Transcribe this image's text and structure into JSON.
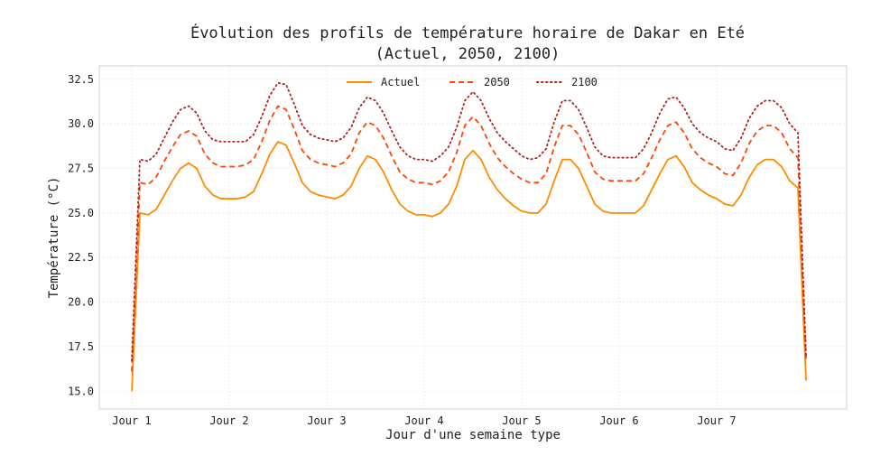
{
  "chart_data": {
    "type": "line",
    "title_lines": [
      "Évolution des profils de température horaire de Dakar en Eté",
      "(Actuel, 2050, 2100)"
    ],
    "xlabel": "Jour d'une semaine type",
    "ylabel": "Température (°C)",
    "xticks": [
      {
        "label": "Jour 1",
        "x": 0
      },
      {
        "label": "Jour 2",
        "x": 24
      },
      {
        "label": "Jour 3",
        "x": 48
      },
      {
        "label": "Jour 4",
        "x": 72
      },
      {
        "label": "Jour 5",
        "x": 96
      },
      {
        "label": "Jour 6",
        "x": 120
      },
      {
        "label": "Jour 7",
        "x": 144
      }
    ],
    "yticks": [
      15.0,
      17.5,
      20.0,
      22.5,
      25.0,
      27.5,
      30.0,
      32.5
    ],
    "ytick_labels": [
      "15.0",
      "17.5",
      "20.0",
      "22.5",
      "25.0",
      "27.5",
      "30.0",
      "32.5"
    ],
    "xlim": [
      -8,
      176
    ],
    "ylim": [
      14.0,
      33.25
    ],
    "grid": true,
    "legend_position": "top-center",
    "series": [
      {
        "name": "Actuel",
        "color": "#ff8c00",
        "style": "solid",
        "points": [
          [
            0,
            15.0
          ],
          [
            2,
            25.0
          ],
          [
            4,
            24.9
          ],
          [
            6,
            25.2
          ],
          [
            8,
            26.0
          ],
          [
            10,
            26.8
          ],
          [
            12,
            27.5
          ],
          [
            14,
            27.8
          ],
          [
            16,
            27.5
          ],
          [
            18,
            26.5
          ],
          [
            20,
            26.0
          ],
          [
            22,
            25.8
          ],
          [
            24,
            25.8
          ],
          [
            26,
            25.8
          ],
          [
            28,
            25.9
          ],
          [
            30,
            26.2
          ],
          [
            32,
            27.2
          ],
          [
            34,
            28.3
          ],
          [
            36,
            29.0
          ],
          [
            38,
            28.8
          ],
          [
            40,
            27.8
          ],
          [
            42,
            26.7
          ],
          [
            44,
            26.2
          ],
          [
            46,
            26.0
          ],
          [
            48,
            25.9
          ],
          [
            50,
            25.8
          ],
          [
            52,
            26.0
          ],
          [
            54,
            26.5
          ],
          [
            56,
            27.5
          ],
          [
            58,
            28.2
          ],
          [
            60,
            28.0
          ],
          [
            62,
            27.3
          ],
          [
            64,
            26.3
          ],
          [
            66,
            25.5
          ],
          [
            68,
            25.1
          ],
          [
            70,
            24.9
          ],
          [
            72,
            24.9
          ],
          [
            74,
            24.8
          ],
          [
            76,
            25.0
          ],
          [
            78,
            25.5
          ],
          [
            80,
            26.5
          ],
          [
            82,
            28.0
          ],
          [
            84,
            28.5
          ],
          [
            86,
            28.0
          ],
          [
            88,
            27.0
          ],
          [
            90,
            26.3
          ],
          [
            92,
            25.8
          ],
          [
            94,
            25.4
          ],
          [
            96,
            25.1
          ],
          [
            98,
            25.0
          ],
          [
            100,
            25.0
          ],
          [
            102,
            25.5
          ],
          [
            104,
            26.8
          ],
          [
            106,
            28.0
          ],
          [
            108,
            28.0
          ],
          [
            110,
            27.5
          ],
          [
            112,
            26.5
          ],
          [
            114,
            25.5
          ],
          [
            116,
            25.1
          ],
          [
            118,
            25.0
          ],
          [
            120,
            25.0
          ],
          [
            122,
            25.0
          ],
          [
            124,
            25.0
          ],
          [
            126,
            25.4
          ],
          [
            128,
            26.3
          ],
          [
            130,
            27.2
          ],
          [
            132,
            28.0
          ],
          [
            134,
            28.2
          ],
          [
            136,
            27.6
          ],
          [
            138,
            26.7
          ],
          [
            140,
            26.3
          ],
          [
            142,
            26.0
          ],
          [
            144,
            25.8
          ],
          [
            146,
            25.5
          ],
          [
            148,
            25.4
          ],
          [
            150,
            26.0
          ],
          [
            152,
            27.0
          ],
          [
            154,
            27.7
          ],
          [
            156,
            28.0
          ],
          [
            158,
            28.0
          ],
          [
            160,
            27.6
          ],
          [
            162,
            26.8
          ],
          [
            164,
            26.4
          ],
          [
            166,
            15.6
          ]
        ]
      },
      {
        "name": "2050",
        "color": "#ff4500",
        "style": "dashed",
        "points": [
          [
            0,
            16.1
          ],
          [
            2,
            26.7
          ],
          [
            4,
            26.6
          ],
          [
            6,
            27.0
          ],
          [
            8,
            27.9
          ],
          [
            10,
            28.7
          ],
          [
            12,
            29.4
          ],
          [
            14,
            29.6
          ],
          [
            16,
            29.3
          ],
          [
            18,
            28.3
          ],
          [
            20,
            27.8
          ],
          [
            22,
            27.6
          ],
          [
            24,
            27.6
          ],
          [
            26,
            27.6
          ],
          [
            28,
            27.7
          ],
          [
            30,
            28.0
          ],
          [
            32,
            29.0
          ],
          [
            34,
            30.2
          ],
          [
            36,
            31.0
          ],
          [
            38,
            30.8
          ],
          [
            40,
            29.7
          ],
          [
            42,
            28.5
          ],
          [
            44,
            28.0
          ],
          [
            46,
            27.8
          ],
          [
            48,
            27.7
          ],
          [
            50,
            27.6
          ],
          [
            52,
            27.8
          ],
          [
            54,
            28.3
          ],
          [
            56,
            29.5
          ],
          [
            58,
            30.1
          ],
          [
            60,
            29.9
          ],
          [
            62,
            29.2
          ],
          [
            64,
            28.2
          ],
          [
            66,
            27.3
          ],
          [
            68,
            26.9
          ],
          [
            70,
            26.7
          ],
          [
            72,
            26.7
          ],
          [
            74,
            26.6
          ],
          [
            76,
            26.8
          ],
          [
            78,
            27.3
          ],
          [
            80,
            28.4
          ],
          [
            82,
            29.9
          ],
          [
            84,
            30.4
          ],
          [
            86,
            29.9
          ],
          [
            88,
            28.9
          ],
          [
            90,
            28.1
          ],
          [
            92,
            27.6
          ],
          [
            94,
            27.2
          ],
          [
            96,
            26.9
          ],
          [
            98,
            26.7
          ],
          [
            100,
            26.7
          ],
          [
            102,
            27.2
          ],
          [
            104,
            28.7
          ],
          [
            106,
            29.9
          ],
          [
            108,
            29.9
          ],
          [
            110,
            29.4
          ],
          [
            112,
            28.4
          ],
          [
            114,
            27.3
          ],
          [
            116,
            26.9
          ],
          [
            118,
            26.8
          ],
          [
            120,
            26.8
          ],
          [
            122,
            26.8
          ],
          [
            124,
            26.8
          ],
          [
            126,
            27.2
          ],
          [
            128,
            28.1
          ],
          [
            130,
            29.1
          ],
          [
            132,
            29.9
          ],
          [
            134,
            30.1
          ],
          [
            136,
            29.5
          ],
          [
            138,
            28.6
          ],
          [
            140,
            28.1
          ],
          [
            142,
            27.8
          ],
          [
            144,
            27.6
          ],
          [
            146,
            27.2
          ],
          [
            148,
            27.1
          ],
          [
            150,
            27.8
          ],
          [
            152,
            28.9
          ],
          [
            154,
            29.6
          ],
          [
            156,
            29.9
          ],
          [
            158,
            29.9
          ],
          [
            160,
            29.5
          ],
          [
            162,
            28.6
          ],
          [
            164,
            28.1
          ],
          [
            166,
            16.8
          ]
        ]
      },
      {
        "name": "2100",
        "color": "#b22222",
        "style": "dotted",
        "points": [
          [
            0,
            16.7
          ],
          [
            2,
            28.0
          ],
          [
            4,
            27.9
          ],
          [
            6,
            28.3
          ],
          [
            8,
            29.2
          ],
          [
            10,
            30.1
          ],
          [
            12,
            30.8
          ],
          [
            14,
            31.0
          ],
          [
            16,
            30.6
          ],
          [
            18,
            29.6
          ],
          [
            20,
            29.1
          ],
          [
            22,
            29.0
          ],
          [
            24,
            29.0
          ],
          [
            26,
            29.0
          ],
          [
            28,
            29.0
          ],
          [
            30,
            29.4
          ],
          [
            32,
            30.4
          ],
          [
            34,
            31.6
          ],
          [
            36,
            32.3
          ],
          [
            38,
            32.2
          ],
          [
            40,
            31.1
          ],
          [
            42,
            29.9
          ],
          [
            44,
            29.4
          ],
          [
            46,
            29.2
          ],
          [
            48,
            29.1
          ],
          [
            50,
            29.0
          ],
          [
            52,
            29.2
          ],
          [
            54,
            29.8
          ],
          [
            56,
            30.9
          ],
          [
            58,
            31.5
          ],
          [
            60,
            31.3
          ],
          [
            62,
            30.6
          ],
          [
            64,
            29.6
          ],
          [
            66,
            28.7
          ],
          [
            68,
            28.2
          ],
          [
            70,
            28.0
          ],
          [
            72,
            28.0
          ],
          [
            74,
            27.9
          ],
          [
            76,
            28.2
          ],
          [
            78,
            28.7
          ],
          [
            80,
            29.8
          ],
          [
            82,
            31.3
          ],
          [
            84,
            31.8
          ],
          [
            86,
            31.3
          ],
          [
            88,
            30.3
          ],
          [
            90,
            29.5
          ],
          [
            92,
            29.0
          ],
          [
            94,
            28.6
          ],
          [
            96,
            28.2
          ],
          [
            98,
            28.0
          ],
          [
            100,
            28.1
          ],
          [
            102,
            28.6
          ],
          [
            104,
            30.1
          ],
          [
            106,
            31.3
          ],
          [
            108,
            31.3
          ],
          [
            110,
            30.8
          ],
          [
            112,
            29.8
          ],
          [
            114,
            28.7
          ],
          [
            116,
            28.2
          ],
          [
            118,
            28.1
          ],
          [
            120,
            28.1
          ],
          [
            122,
            28.1
          ],
          [
            124,
            28.1
          ],
          [
            126,
            28.6
          ],
          [
            128,
            29.5
          ],
          [
            130,
            30.6
          ],
          [
            132,
            31.4
          ],
          [
            134,
            31.5
          ],
          [
            136,
            30.9
          ],
          [
            138,
            30.0
          ],
          [
            140,
            29.5
          ],
          [
            142,
            29.2
          ],
          [
            144,
            29.0
          ],
          [
            146,
            28.6
          ],
          [
            148,
            28.5
          ],
          [
            150,
            29.2
          ],
          [
            152,
            30.3
          ],
          [
            154,
            31.0
          ],
          [
            156,
            31.3
          ],
          [
            158,
            31.3
          ],
          [
            160,
            30.9
          ],
          [
            162,
            30.0
          ],
          [
            164,
            29.5
          ],
          [
            166,
            17.0
          ]
        ]
      }
    ]
  }
}
